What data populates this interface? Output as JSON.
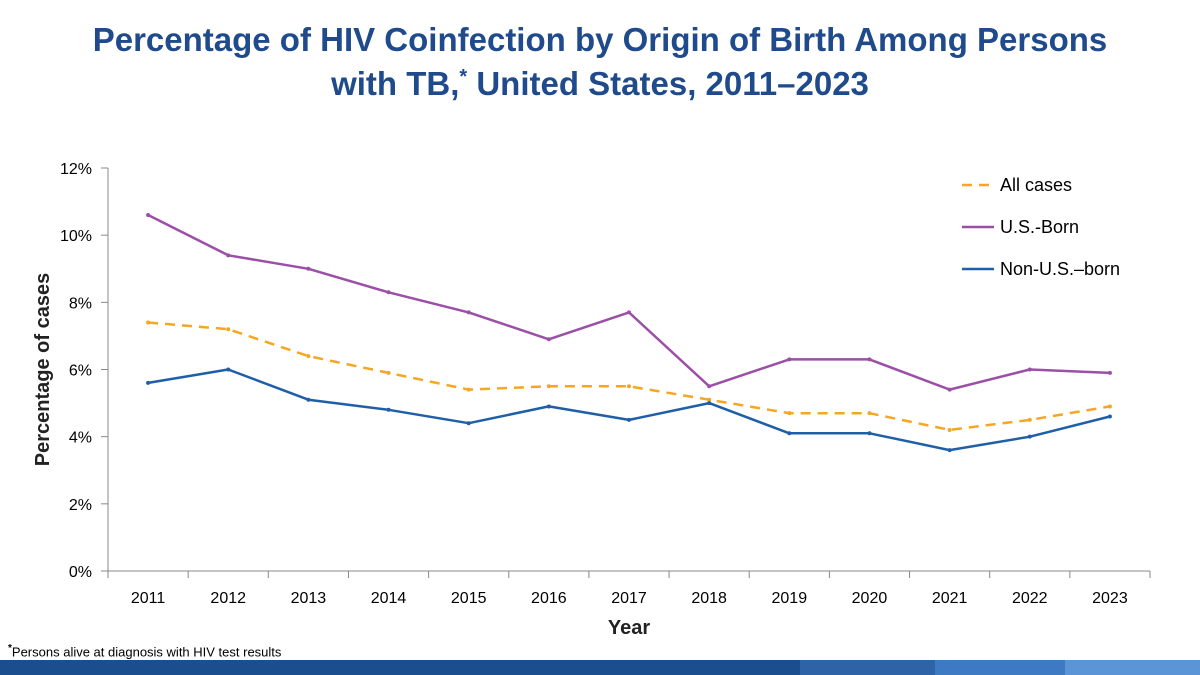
{
  "title": {
    "line1": "Percentage of HIV Coinfection by Origin of Birth Among Persons",
    "line2_pre": "with TB,",
    "line2_sup": "*",
    "line2_post": " United States, 2011–2023"
  },
  "footnote": {
    "marker": "*",
    "text": "Persons alive at diagnosis with HIV test results"
  },
  "colors": {
    "title": "#1f4a8c",
    "all_cases": "#f5a623",
    "us_born": "#9b4fa6",
    "non_us_born": "#1f5fa8"
  },
  "chart_data": {
    "type": "line",
    "title": "Percentage of HIV Coinfection by Origin of Birth Among Persons with TB, United States, 2011–2023",
    "xlabel": "Year",
    "ylabel": "Percentage of cases",
    "ylim": [
      0,
      12
    ],
    "y_ticks": [
      0,
      2,
      4,
      6,
      8,
      10,
      12
    ],
    "y_tick_labels": [
      "0%",
      "2%",
      "4%",
      "6%",
      "8%",
      "10%",
      "12%"
    ],
    "categories": [
      "2011",
      "2012",
      "2013",
      "2014",
      "2015",
      "2016",
      "2017",
      "2018",
      "2019",
      "2020",
      "2021",
      "2022",
      "2023"
    ],
    "grid": false,
    "legend_position": "top-right",
    "series": [
      {
        "name": "All cases",
        "style": "dashed",
        "color": "#f5a623",
        "values": [
          7.4,
          7.2,
          6.4,
          5.9,
          5.4,
          5.5,
          5.5,
          5.1,
          4.7,
          4.7,
          4.2,
          4.5,
          4.9
        ]
      },
      {
        "name": "U.S.-Born",
        "style": "solid",
        "color": "#9b4fa6",
        "values": [
          10.6,
          9.4,
          9.0,
          8.3,
          7.7,
          6.9,
          7.7,
          5.5,
          6.3,
          6.3,
          5.4,
          6.0,
          5.9
        ]
      },
      {
        "name": "Non-U.S.–born",
        "style": "solid",
        "color": "#1f5fa8",
        "values": [
          5.6,
          6.0,
          5.1,
          4.8,
          4.4,
          4.9,
          4.5,
          5.0,
          4.1,
          4.1,
          3.6,
          4.0,
          4.6
        ]
      }
    ]
  }
}
